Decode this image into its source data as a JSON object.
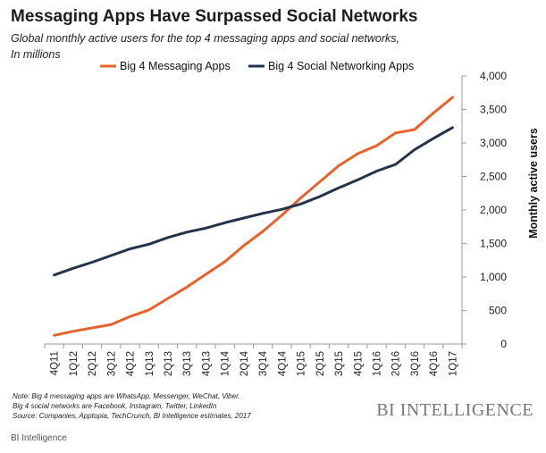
{
  "header": {
    "title": "Messaging Apps Have Surpassed Social Networks",
    "subtitle_line1": "Global monthly active users for the top 4 messaging apps and social networks,",
    "subtitle_line2": "In millions"
  },
  "notes": {
    "line1": "Note: Big 4 messaging apps are WhatsApp, Messenger, WeChat, Viber.",
    "line2": "Big 4 social networks are Facebook, Instagram, Twitter, LinkedIn",
    "line3": "Source: Companies,  Apptopia, TechCrunch,  BI Intelligence estimates, 2017"
  },
  "brand": "BI INTELLIGENCE",
  "footer": "BI Intelligence",
  "chart_data": {
    "type": "line",
    "title": "Messaging Apps Have Surpassed Social Networks",
    "ylabel": "Monthly active users",
    "xlabel": "",
    "ylim": [
      0,
      4000
    ],
    "yticks": [
      0,
      500,
      1000,
      1500,
      2000,
      2500,
      3000,
      3500,
      4000
    ],
    "yticks_labels": [
      "0",
      "500",
      "1,000",
      "1,500",
      "2,000",
      "2,500",
      "3,000",
      "3,500",
      "4,000"
    ],
    "y_axis_side": "right",
    "grid": false,
    "legend": "top",
    "categories": [
      "4Q11",
      "1Q12",
      "2Q12",
      "3Q12",
      "4Q12",
      "1Q13",
      "2Q13",
      "3Q13",
      "4Q13",
      "1Q14",
      "2Q14",
      "3Q14",
      "4Q14",
      "1Q15",
      "2Q15",
      "3Q15",
      "4Q15",
      "1Q16",
      "2Q16",
      "3Q16",
      "4Q16",
      "1Q17"
    ],
    "series": [
      {
        "name": "Big 4 Messaging Apps",
        "color": "#e8622c",
        "values": [
          130,
          190,
          240,
          290,
          410,
          510,
          680,
          850,
          1040,
          1230,
          1470,
          1680,
          1920,
          2180,
          2420,
          2660,
          2840,
          2960,
          3150,
          3200,
          3450,
          3680
        ]
      },
      {
        "name": "Big 4 Social Networking Apps",
        "color": "#23344a",
        "values": [
          1030,
          1130,
          1220,
          1320,
          1420,
          1490,
          1590,
          1670,
          1730,
          1810,
          1880,
          1950,
          2010,
          2090,
          2200,
          2330,
          2450,
          2580,
          2680,
          2900,
          3070,
          3230
        ]
      }
    ]
  }
}
